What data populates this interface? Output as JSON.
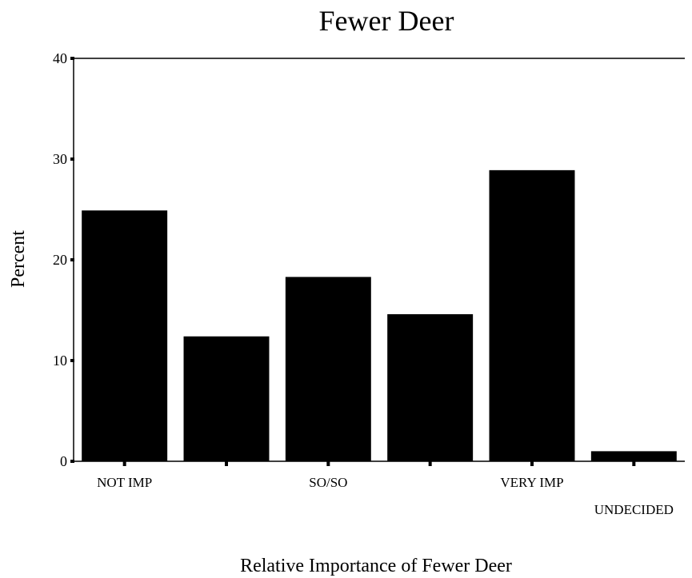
{
  "chart_data": {
    "type": "bar",
    "title": "Fewer Deer",
    "xlabel": "Relative Importance of Fewer Deer",
    "ylabel": "Percent",
    "categories": [
      "NOT IMP",
      "",
      "SO/SO",
      "",
      "VERY IMP",
      "UNDECIDED"
    ],
    "values": [
      24.9,
      12.4,
      18.3,
      14.6,
      28.9,
      1.0
    ],
    "ylim": [
      0,
      40
    ],
    "yticks": [
      "0",
      "10",
      "20",
      "30",
      "40"
    ],
    "grid": false,
    "bar_color": "#000000"
  }
}
